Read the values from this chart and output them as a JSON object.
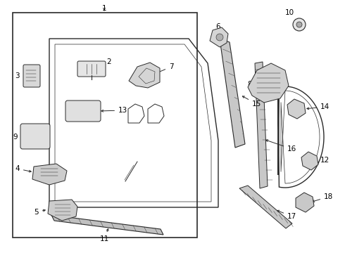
{
  "bg_color": "#ffffff",
  "line_color": "#2a2a2a",
  "label_color": "#000000",
  "fig_w": 4.9,
  "fig_h": 3.6,
  "dpi": 100
}
